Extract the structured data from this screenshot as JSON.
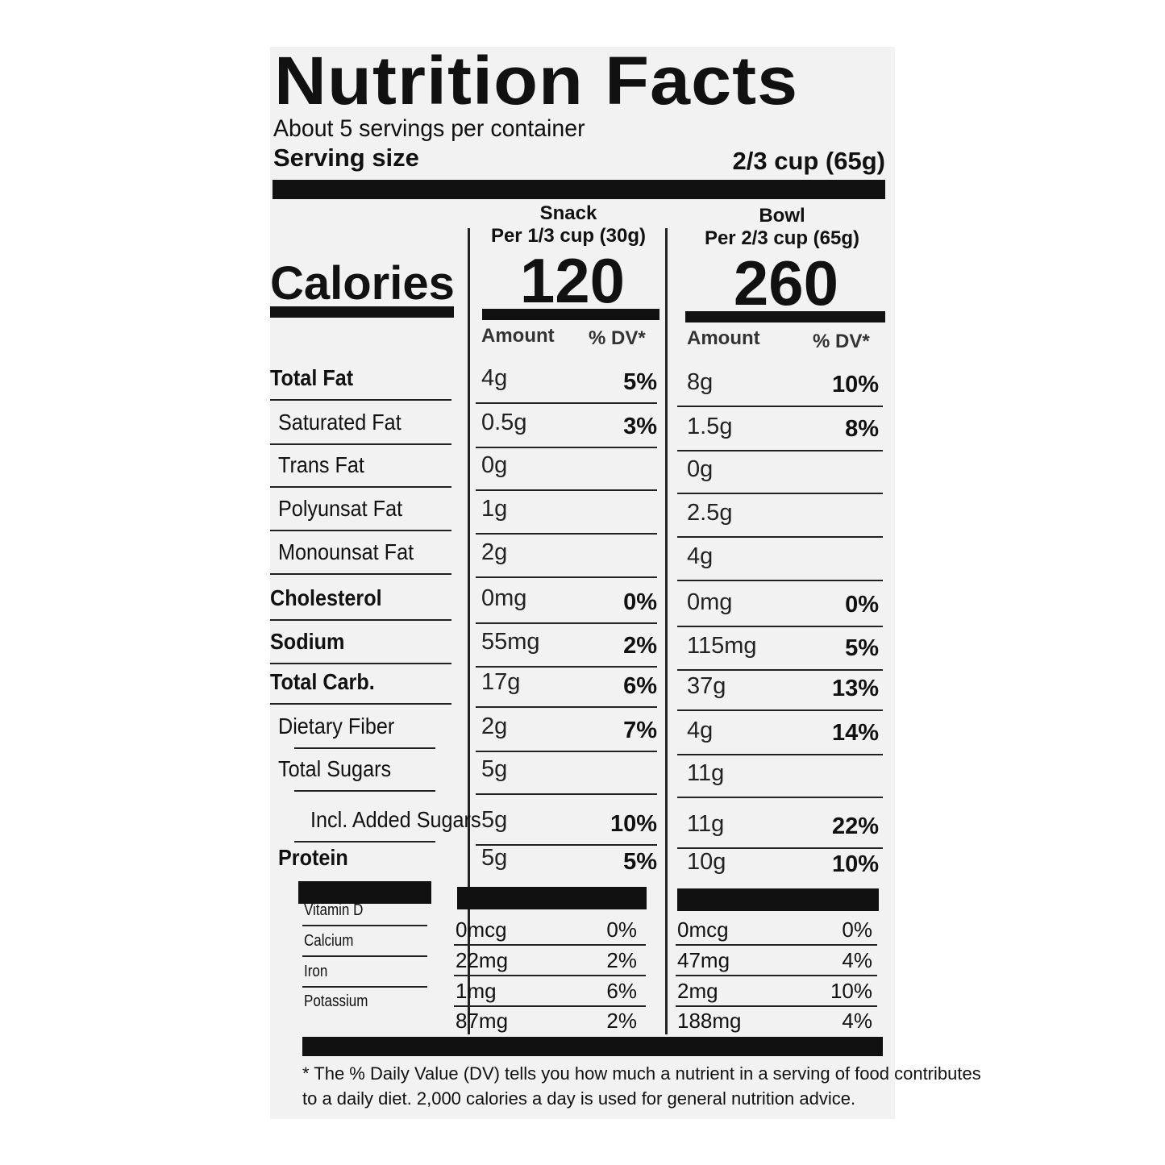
{
  "title": "Nutrition Facts",
  "servings_per_container": "About 5 servings per container",
  "serving_size_label": "Serving size",
  "serving_size_value": "2/3 cup (65g)",
  "calories_label": "Calories",
  "columns": [
    {
      "name": "Snack",
      "per": "Per 1/3 cup (30g)",
      "calories": "120",
      "amount_label": "Amount",
      "dv_label": "% DV*"
    },
    {
      "name": "Bowl",
      "per": "Per 2/3 cup (65g)",
      "calories": "260",
      "amount_label": "Amount",
      "dv_label": "% DV*"
    }
  ],
  "nutrients": [
    {
      "label": "Total Fat",
      "bold": true,
      "indent": 0,
      "snack": [
        "4g",
        "5%"
      ],
      "bowl": [
        "8g",
        "10%"
      ]
    },
    {
      "label": "Saturated Fat",
      "indent": 1,
      "snack": [
        "0.5g",
        "3%"
      ],
      "bowl": [
        "1.5g",
        "8%"
      ]
    },
    {
      "label": "Trans Fat",
      "indent": 1,
      "snack": [
        "0g",
        ""
      ],
      "bowl": [
        "0g",
        ""
      ]
    },
    {
      "label": "Polyunsat Fat",
      "indent": 1,
      "snack": [
        "1g",
        ""
      ],
      "bowl": [
        "2.5g",
        ""
      ]
    },
    {
      "label": "Monounsat Fat",
      "indent": 1,
      "snack": [
        "2g",
        ""
      ],
      "bowl": [
        "4g",
        ""
      ]
    },
    {
      "label": "Cholesterol",
      "bold": true,
      "indent": 0,
      "snack": [
        "0mg",
        "0%"
      ],
      "bowl": [
        "0mg",
        "0%"
      ]
    },
    {
      "label": "Sodium",
      "bold": true,
      "indent": 0,
      "snack": [
        "55mg",
        "2%"
      ],
      "bowl": [
        "115mg",
        "5%"
      ]
    },
    {
      "label": "Total Carb.",
      "bold": true,
      "indent": 0,
      "snack": [
        "17g",
        "6%"
      ],
      "bowl": [
        "37g",
        "13%"
      ]
    },
    {
      "label": "Dietary Fiber",
      "indent": 1,
      "snack": [
        "2g",
        "7%"
      ],
      "bowl": [
        "4g",
        "14%"
      ]
    },
    {
      "label": "Total Sugars",
      "indent": 1,
      "snack": [
        "5g",
        ""
      ],
      "bowl": [
        "11g",
        ""
      ]
    },
    {
      "label": "Incl. Added Sugars",
      "indent": 2,
      "snack": [
        "5g",
        "10%"
      ],
      "bowl": [
        "11g",
        "22%"
      ]
    },
    {
      "label": "Protein",
      "bold": true,
      "indent": 1,
      "snack": [
        "5g",
        "5%"
      ],
      "bowl": [
        "10g",
        "10%"
      ]
    }
  ],
  "vitamins": [
    {
      "label": "Vitamin D",
      "snack": [
        "0mcg",
        "0%"
      ],
      "bowl": [
        "0mcg",
        "0%"
      ]
    },
    {
      "label": "Calcium",
      "snack": [
        "22mg",
        "2%"
      ],
      "bowl": [
        "47mg",
        "4%"
      ]
    },
    {
      "label": "Iron",
      "snack": [
        "1mg",
        "6%"
      ],
      "bowl": [
        "2mg",
        "10%"
      ]
    },
    {
      "label": "Potassium",
      "snack": [
        "87mg",
        "2%"
      ],
      "bowl": [
        "188mg",
        "4%"
      ]
    }
  ],
  "footnote_line1": "* The % Daily Value (DV) tells you how much a nutrient in a serving of food contributes",
  "footnote_line2": "to a daily diet. 2,000 calories a day is used for general nutrition advice."
}
